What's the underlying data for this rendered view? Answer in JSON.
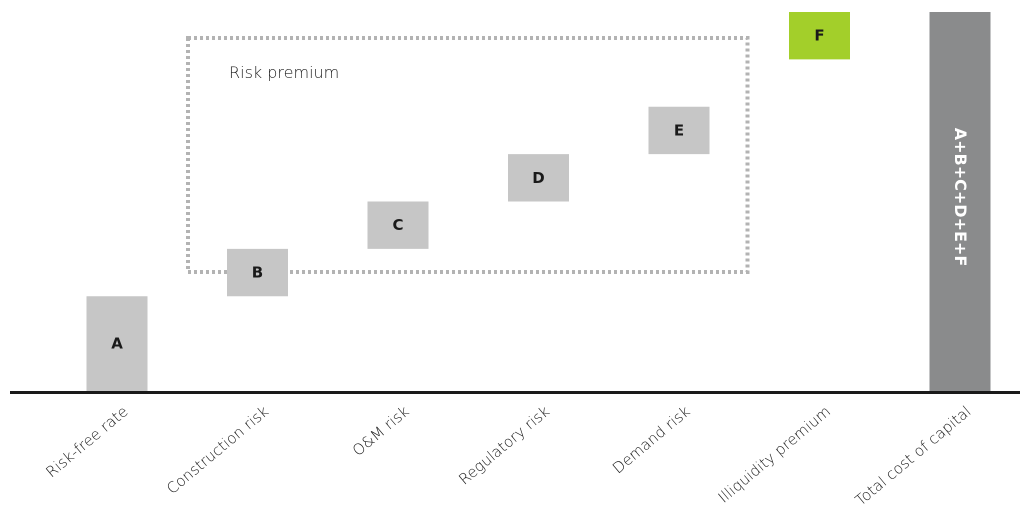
{
  "chart_data": {
    "type": "bar",
    "subtype": "waterfall",
    "title": "",
    "xlabel": "",
    "ylabel": "",
    "grid": false,
    "categories": [
      "Risk-free rate",
      "Construction risk",
      "O&M risk",
      "Regulatory risk",
      "Demand risk",
      "Illiquidity premium",
      "Total cost of capital"
    ],
    "bars": [
      {
        "category": "Risk-free rate",
        "label": "A",
        "start": 0,
        "end": 1.0,
        "color": "#c6c6c6",
        "label_color": "#1a1a1a"
      },
      {
        "category": "Construction risk",
        "label": "B",
        "start": 1.0,
        "end": 1.5,
        "color": "#c6c6c6",
        "label_color": "#1a1a1a"
      },
      {
        "category": "O&M risk",
        "label": "C",
        "start": 1.5,
        "end": 2.0,
        "color": "#c6c6c6",
        "label_color": "#1a1a1a"
      },
      {
        "category": "Regulatory risk",
        "label": "D",
        "start": 2.0,
        "end": 2.5,
        "color": "#c6c6c6",
        "label_color": "#1a1a1a"
      },
      {
        "category": "Demand risk",
        "label": "E",
        "start": 2.5,
        "end": 3.0,
        "color": "#c6c6c6",
        "label_color": "#1a1a1a"
      },
      {
        "category": "Illiquidity premium",
        "label": "F",
        "start": 3.5,
        "end": 4.0,
        "color": "#a3cf2a",
        "label_color": "#1a1a1a"
      },
      {
        "category": "Total cost of capital",
        "label": "A+B+C+D+E+F",
        "start": 0,
        "end": 4.0,
        "color": "#8a8b8c",
        "label_color": "#ffffff",
        "vertical_label": true
      }
    ],
    "ylim": [
      0,
      4.0
    ],
    "annotations": [
      {
        "type": "dashed-box",
        "label": "Risk premium",
        "spans": [
          "Construction risk",
          "Demand risk"
        ],
        "border_color": "#b3b3b3"
      }
    ],
    "axis_color": "#1a1a1a"
  }
}
